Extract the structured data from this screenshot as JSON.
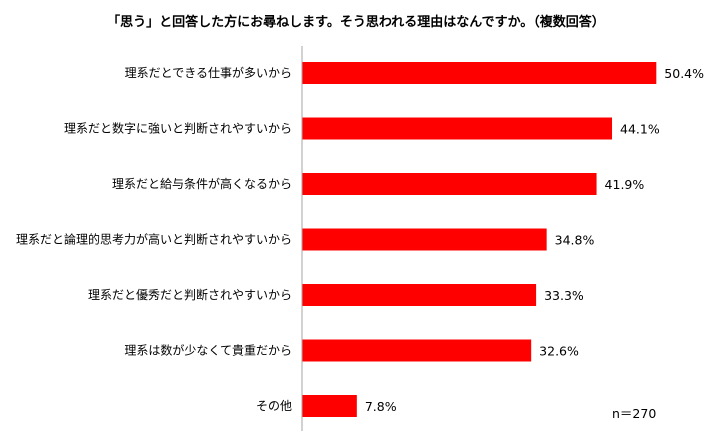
{
  "chart_data": {
    "type": "bar",
    "orientation": "horizontal",
    "title": "「思う」と回答した方にお尋ねします。そう思われる理由はなんですか。（複数回答）",
    "categories": [
      "理系だとできる仕事が多いから",
      "理系だと数字に強いと判断されやすいから",
      "理系だと給与条件が高くなるから",
      "理系だと論理的思考力が高いと判断されやすいから",
      "理系だと優秀だと判断されやすいから",
      "理系は数が少なくて貴重だから",
      "その他"
    ],
    "values": [
      50.4,
      44.1,
      41.9,
      34.8,
      33.3,
      32.6,
      7.8
    ],
    "value_labels": [
      "50.4%",
      "44.1%",
      "41.9%",
      "34.8%",
      "33.3%",
      "32.6%",
      "7.8%"
    ],
    "unit": "%",
    "xlim": [
      0,
      100
    ],
    "grid": false,
    "bar_color": "#ff0000",
    "axis_color": "#a6a6a6",
    "sample_note": "n＝270"
  }
}
